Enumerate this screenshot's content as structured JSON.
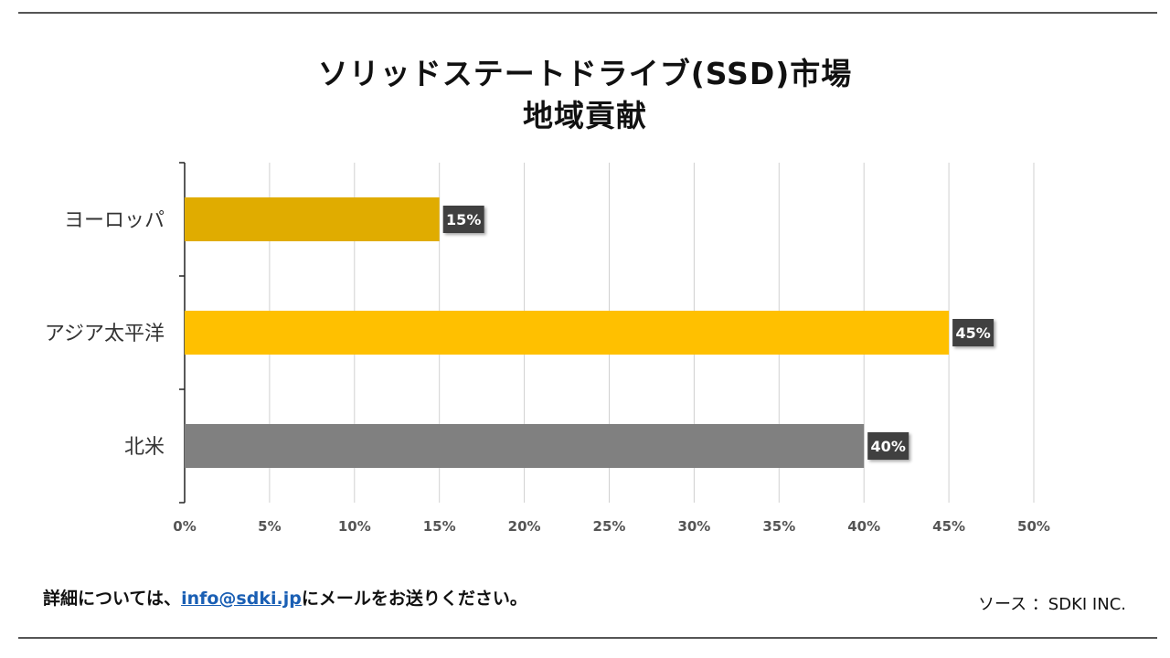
{
  "title": {
    "line1": "ソリッドステートドライブ(SSD)市場",
    "line2": "地域貢献"
  },
  "chart_data": {
    "type": "bar",
    "orientation": "horizontal",
    "title": "ソリッドステートドライブ(SSD)市場 地域貢献",
    "categories": [
      "ヨーロッパ",
      "アジア太平洋",
      "北米"
    ],
    "values": [
      15,
      45,
      40
    ],
    "value_labels": [
      "15%",
      "45%",
      "40%"
    ],
    "bar_colors": [
      "#E0AC00",
      "#FFC000",
      "#808080"
    ],
    "xlim": [
      0,
      50
    ],
    "xticks": [
      "0%",
      "5%",
      "10%",
      "15%",
      "20%",
      "25%",
      "30%",
      "35%",
      "40%",
      "45%",
      "50%"
    ],
    "grid": true,
    "xlabel": "",
    "ylabel": ""
  },
  "footer": {
    "prefix": "詳細については、",
    "email": "info@sdki.jp",
    "suffix": "にメールをお送りください。",
    "source": "ソース ：SDKI INC."
  }
}
